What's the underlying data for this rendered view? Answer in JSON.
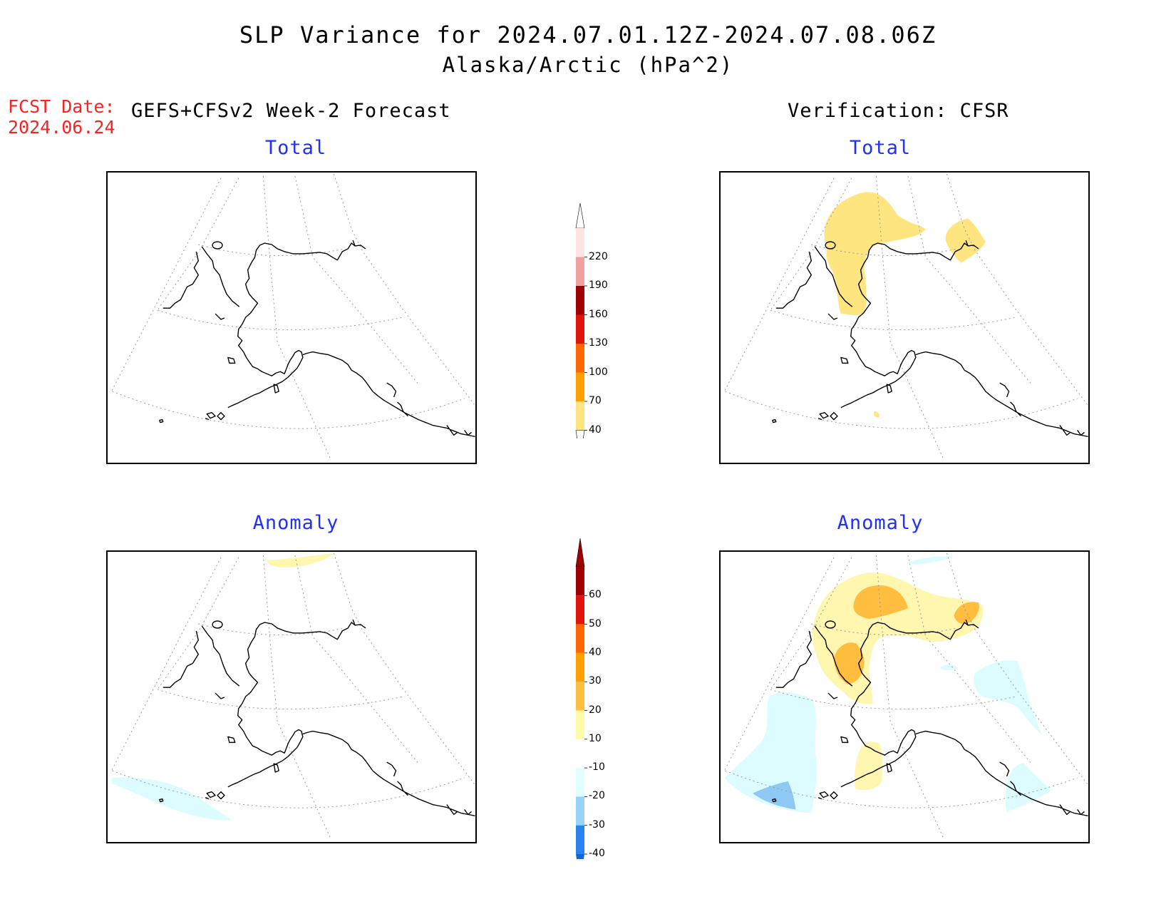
{
  "header": {
    "title": "SLP Variance for 2024.07.01.12Z-2024.07.08.06Z",
    "subtitle": "Alaska/Arctic (hPa^2)",
    "fcst_label": "FCST Date:",
    "fcst_date": "2024.06.24",
    "forecast_heading": "GEFS+CFSv2 Week-2 Forecast",
    "verification_heading": "Verification: CFSR"
  },
  "panels": {
    "fcst_total": {
      "title": "Total"
    },
    "fcst_anomaly": {
      "title": "Anomaly"
    },
    "ver_total": {
      "title": "Total"
    },
    "ver_anomaly": {
      "title": "Anomaly"
    }
  },
  "colorbars": {
    "total": {
      "labels": [
        "220",
        "190",
        "160",
        "130",
        "100",
        "70",
        "40"
      ],
      "colors": [
        "#fce4e4",
        "#f2a1a1",
        "#a00000",
        "#e0140a",
        "#ff6600",
        "#ffa000",
        "#ffe580"
      ]
    },
    "anomaly": {
      "labels": [
        "60",
        "50",
        "40",
        "30",
        "20",
        "10",
        "-10",
        "-20",
        "-30",
        "-40"
      ],
      "colors": [
        "#a00000",
        "#e0140a",
        "#ff6600",
        "#ffa000",
        "#ffbe40",
        "#fffaaa",
        "#ffffff",
        "#e0ffff",
        "#96d2fa",
        "#2882f0",
        "#1464d2"
      ]
    }
  },
  "colors": {
    "fill_light_yellow": "#fff7b0",
    "fill_yellow": "#ffe580",
    "fill_orange": "#ffbe40",
    "fill_light_cyan": "#dcfcff",
    "fill_blue": "#8ec8f4",
    "coast": "#000000",
    "grid": "#9a9a9a",
    "title_blue": "#2030ff",
    "fcst_red": "#ff2020"
  }
}
